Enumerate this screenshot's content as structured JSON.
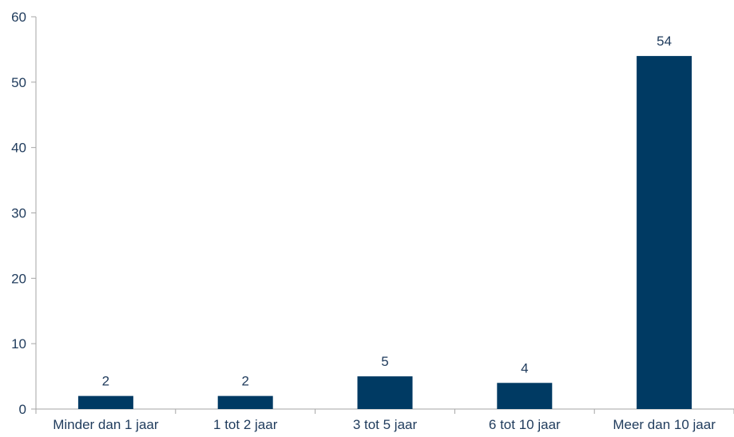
{
  "chart_data": {
    "type": "bar",
    "categories": [
      "Minder dan 1 jaar",
      "1 tot 2 jaar",
      "3 tot 5 jaar",
      "6 tot 10 jaar",
      "Meer dan 10 jaar"
    ],
    "values": [
      2,
      2,
      5,
      4,
      54
    ],
    "data_labels": [
      "2",
      "2",
      "5",
      "4",
      "54"
    ],
    "yticks": [
      0,
      10,
      20,
      30,
      40,
      50,
      60
    ],
    "ylim": [
      0,
      60
    ],
    "grid": false,
    "colors": {
      "bar": "#003a63",
      "axis": "#a6a6a6",
      "text": "#1f3b5c"
    }
  }
}
